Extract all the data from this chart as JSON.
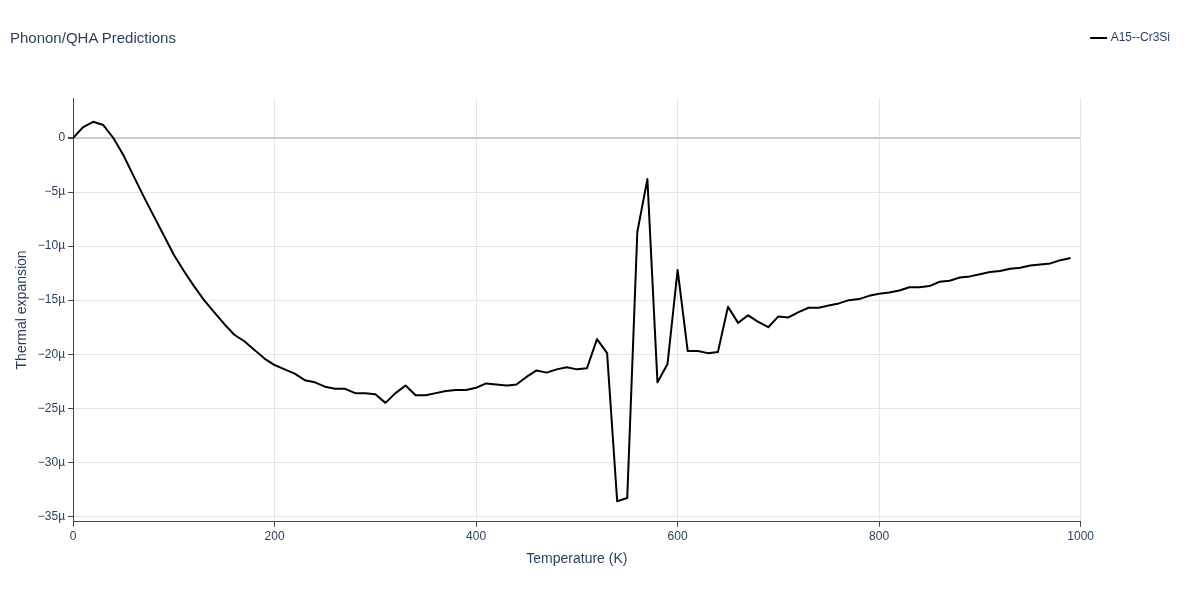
{
  "chart_data": {
    "type": "line",
    "title": "Phonon/QHA Predictions",
    "xlabel": "Temperature (K)",
    "ylabel": "Thermal expansion",
    "x": [
      0,
      10,
      20,
      30,
      40,
      50,
      60,
      70,
      80,
      90,
      100,
      110,
      120,
      130,
      140,
      150,
      160,
      170,
      180,
      190,
      200,
      210,
      220,
      230,
      240,
      250,
      260,
      270,
      280,
      290,
      300,
      310,
      320,
      330,
      340,
      350,
      360,
      370,
      380,
      390,
      400,
      410,
      420,
      430,
      440,
      450,
      460,
      470,
      480,
      490,
      500,
      510,
      520,
      530,
      540,
      550,
      560,
      570,
      580,
      590,
      600,
      610,
      620,
      630,
      640,
      650,
      660,
      670,
      680,
      690,
      700,
      710,
      720,
      730,
      740,
      750,
      760,
      770,
      780,
      790,
      800,
      810,
      820,
      830,
      840,
      850,
      860,
      870,
      880,
      890,
      900,
      910,
      920,
      930,
      940,
      950,
      960,
      970,
      980,
      990
    ],
    "series": [
      {
        "name": "A15--Cr3Si",
        "color": "#000000",
        "values": [
          0,
          1.0,
          1.5,
          1.2,
          0,
          -1.6,
          -3.5,
          -5.4,
          -7.2,
          -9.0,
          -10.8,
          -12.3,
          -13.7,
          -15.0,
          -16.1,
          -17.2,
          -18.2,
          -18.8,
          -19.6,
          -20.4,
          -21.0,
          -21.4,
          -21.8,
          -22.4,
          -22.6,
          -23.0,
          -23.2,
          -23.2,
          -23.6,
          -23.6,
          -23.7,
          -24.5,
          -23.6,
          -22.9,
          -23.8,
          -23.8,
          -23.6,
          -23.4,
          -23.3,
          -23.3,
          -23.1,
          -22.7,
          -22.8,
          -22.9,
          -22.8,
          -22.1,
          -21.5,
          -21.7,
          -21.4,
          -21.2,
          -21.4,
          -21.3,
          -18.6,
          -19.9,
          -33.6,
          -33.3,
          -8.7,
          -3.8,
          -22.6,
          -20.9,
          -12.2,
          -19.7,
          -19.7,
          -19.9,
          -19.8,
          -15.6,
          -17.1,
          -16.4,
          -17.0,
          -17.5,
          -16.5,
          -16.6,
          -16.1,
          -15.7,
          -15.7,
          -15.5,
          -15.3,
          -15.0,
          -14.9,
          -14.6,
          -14.4,
          -14.3,
          -14.1,
          -13.8,
          -13.8,
          -13.7,
          -13.3,
          -13.2,
          -12.9,
          -12.8,
          -12.6,
          -12.4,
          -12.3,
          -12.1,
          -12.0,
          -11.8,
          -11.7,
          -11.6,
          -11.3,
          -11.1
        ]
      }
    ],
    "xlim": [
      0,
      1000
    ],
    "xticks": [
      0,
      200,
      400,
      600,
      800,
      1000
    ],
    "ylim": [
      -35.5,
      3.7
    ],
    "yticks": [
      {
        "value": -35,
        "label": "−35µ"
      },
      {
        "value": -30,
        "label": "−30µ"
      },
      {
        "value": -25,
        "label": "−25µ"
      },
      {
        "value": -20,
        "label": "−20µ"
      },
      {
        "value": -15,
        "label": "−15µ"
      },
      {
        "value": -10,
        "label": "−10µ"
      },
      {
        "value": -5,
        "label": "−5µ"
      },
      0
    ],
    "grid": true,
    "legend": "top right",
    "marker": "none",
    "line_style": "solid"
  }
}
